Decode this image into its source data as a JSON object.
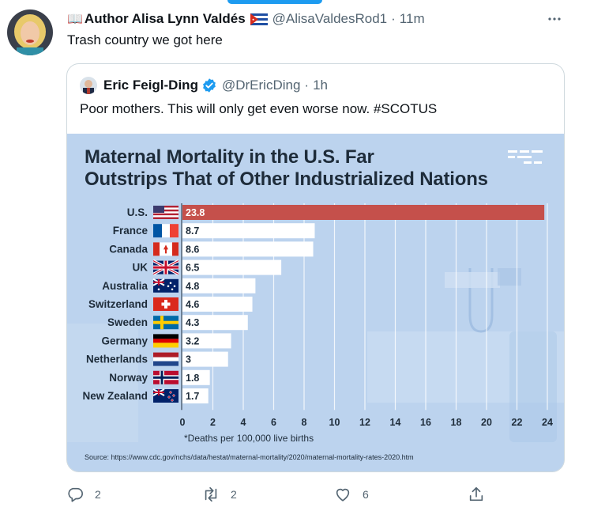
{
  "tweet": {
    "book_emoji": "📖",
    "author_name": "Author Alisa Lynn Valdés",
    "handle": "@AlisaValdesRod1",
    "separator": "·",
    "time": "11m",
    "text": "Trash country we got here"
  },
  "quote": {
    "name": "Eric Feigl-Ding",
    "handle": "@DrEricDing",
    "separator": "·",
    "time": "1h",
    "text": "Poor mothers. This will only get even worse now. #SCOTUS"
  },
  "infographic": {
    "title_line1": "Maternal Mortality in the U.S. Far",
    "title_line2": "Outstrips That of Other Industrialized Nations",
    "footnote": "*Deaths per 100,000 live births",
    "source": "Source: https://www.cdc.gov/nchs/data/hestat/maternal-mortality/2020/maternal-mortality-rates-2020.htm"
  },
  "chart_data": {
    "type": "bar",
    "orientation": "horizontal",
    "categories": [
      "U.S.",
      "France",
      "Canada",
      "UK",
      "Australia",
      "Switzerland",
      "Sweden",
      "Germany",
      "Netherlands",
      "Norway",
      "New Zealand"
    ],
    "values": [
      23.8,
      8.7,
      8.6,
      6.5,
      4.8,
      4.6,
      4.3,
      3.2,
      3,
      1.8,
      1.7
    ],
    "value_labels": [
      "23.8",
      "8.7",
      "8.6",
      "6.5",
      "4.8",
      "4.6",
      "4.3",
      "3.2",
      "3",
      "1.8",
      "1.7"
    ],
    "xticks": [
      "0",
      "2",
      "4",
      "6",
      "8",
      "10",
      "12",
      "14",
      "16",
      "18",
      "20",
      "22",
      "24"
    ],
    "xlim": [
      0,
      24
    ],
    "highlight_color": "#c5504b",
    "bar_color": "#ffffff",
    "grid": true
  },
  "actions": {
    "reply_count": "2",
    "retweet_count": "2",
    "like_count": "6"
  },
  "colors": {
    "accent": "#1d9bf0",
    "muted": "#536471",
    "infographic_bg": "#bcd3ee"
  }
}
